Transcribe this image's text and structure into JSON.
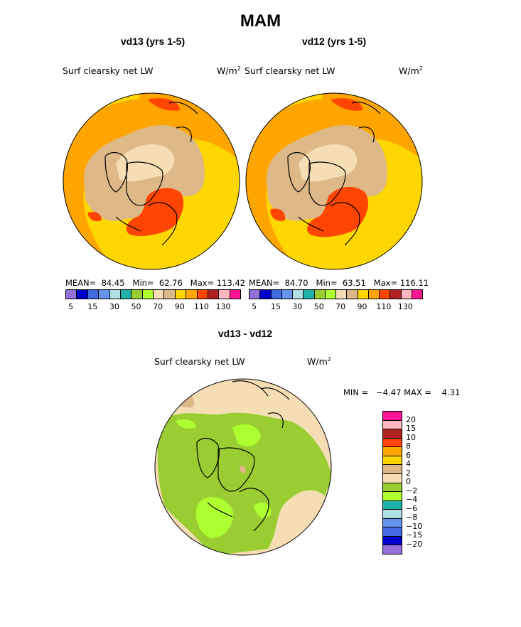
{
  "title": "MAM",
  "panels": [
    {
      "subtitle": "vd13 (yrs 1-5)",
      "field_label": "Surf clearsky net LW",
      "units": "W/m",
      "units_exp": "2",
      "stats": {
        "mean_label": "MEAN=",
        "mean": "84.45",
        "min_label": "Min=",
        "min": "62.76",
        "max_label": "Max=",
        "max": "113.42"
      }
    },
    {
      "subtitle": "vd12 (yrs 1-5)",
      "field_label": "Surf clearsky net LW",
      "units": "W/m",
      "units_exp": "2",
      "stats": {
        "mean_label": "MEAN=",
        "mean": "84.70",
        "min_label": "Min=",
        "min": "63.51",
        "max_label": "Max=",
        "max": "116.11"
      }
    }
  ],
  "colorbar_abs": {
    "colors": [
      "#9370db",
      "#0000cd",
      "#4169e1",
      "#6495ed",
      "#b0e0e6",
      "#20b2aa",
      "#9acd32",
      "#adff2f",
      "#f5deb3",
      "#deb887",
      "#ffd700",
      "#ffa500",
      "#ff4500",
      "#b22222",
      "#ffb6c1",
      "#ff1493"
    ],
    "tick_labels": [
      "5",
      "15",
      "30",
      "50",
      "70",
      "90",
      "110",
      "130"
    ]
  },
  "diff": {
    "subtitle": "vd13 - vd12",
    "field_label": "Surf clearsky net LW",
    "units": "W/m",
    "units_exp": "2",
    "minmax_text": "MIN =   −4.47 MAX =    4.31",
    "colorbar": {
      "colors": [
        "#ff1493",
        "#ffb6c1",
        "#b22222",
        "#ff4500",
        "#ffa500",
        "#ffd700",
        "#deb887",
        "#f5deb3",
        "#9acd32",
        "#adff2f",
        "#20b2aa",
        "#b0e0e6",
        "#6495ed",
        "#4169e1",
        "#0000cd",
        "#9370db"
      ],
      "tick_labels": [
        "20",
        "15",
        "10",
        "8",
        "6",
        "4",
        "2",
        "0",
        "−2",
        "−4",
        "−6",
        "−8",
        "−10",
        "−15",
        "−20"
      ]
    }
  }
}
